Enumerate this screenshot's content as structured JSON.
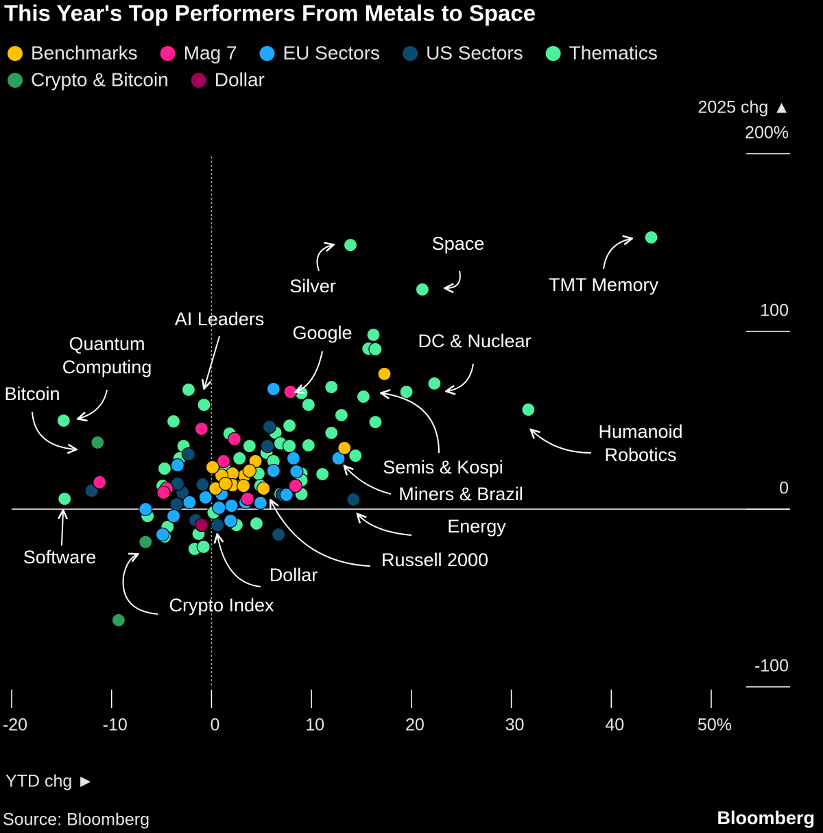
{
  "chart_data": {
    "type": "scatter",
    "title": "This Year's Top Performers From Metals to Space",
    "x_label": "YTD chg ►",
    "y_label": "2025 chg ▲",
    "source": "Source: Bloomberg",
    "brand": "Bloomberg",
    "xlim": [
      -20,
      50
    ],
    "ylim": [
      -100,
      200
    ],
    "xticks": [
      -20,
      -10,
      0,
      10,
      20,
      30,
      40,
      {
        "value": 50,
        "label": "50%"
      }
    ],
    "yticks": [
      -100,
      0,
      100,
      {
        "value": 200,
        "label": "200%"
      }
    ],
    "series": [
      {
        "name": "Thematics",
        "color": "#4df09c",
        "x": [
          13.9,
          21.1,
          44.0,
          16.2,
          15.7,
          16.4,
          22.3,
          19.5,
          15.2,
          12.0,
          9.0,
          9.7,
          31.7,
          13.0,
          16.4,
          12.0,
          14.4,
          11.1,
          9.0,
          9.7,
          -2.3,
          -0.75,
          -3.8,
          -14.8,
          -14.7,
          7.8,
          6.4,
          6.9,
          5.5,
          2.8,
          1.4,
          -2.8,
          -3.2,
          -4.7,
          -4.9,
          1.8,
          3.8,
          4.7,
          6.9,
          9.0,
          -6.4,
          -4.4,
          -4.7,
          -1.3,
          -1.7,
          -0.8,
          4.5,
          2.5,
          0.2,
          3.2,
          6.2,
          7.8,
          9.0,
          4.9
        ],
        "values": [
          148.6,
          123.6,
          152.9,
          98.1,
          90.3,
          90,
          70.7,
          66,
          63.3,
          68.7,
          65.3,
          58.7,
          56,
          52.9,
          49,
          42.9,
          30.1,
          19.7,
          20,
          35.9,
          67.2,
          58.7,
          49.4,
          49.8,
          5.8,
          47,
          43,
          37,
          31.7,
          28.6,
          22,
          35.5,
          28.6,
          22.8,
          13.1,
          42.5,
          35.5,
          20,
          8.5,
          8.5,
          -3.9,
          -10,
          -15.4,
          -13.9,
          -22.4,
          -21.2,
          -8.1,
          -8.9,
          -1.9,
          14.3,
          27,
          35.5,
          16.2,
          13.1
        ]
      },
      {
        "name": "US Sectors",
        "color": "#0b4b70",
        "x": [
          5.8,
          5.6,
          -2.3,
          -0.9,
          -2.9,
          -3.5,
          -1.6,
          0.6,
          6.7,
          14.2,
          -12.0,
          7.1,
          -3.4
        ],
        "values": [
          46.3,
          35.5,
          30.9,
          13.9,
          9.3,
          2.7,
          -6.2,
          -8.9,
          -14.3,
          5.4,
          10.4,
          8.1,
          14.3
        ]
      },
      {
        "name": "EU Sectors",
        "color": "#1eaaff",
        "x": [
          6.2,
          8.2,
          8.5,
          6.2,
          12.7,
          7.5,
          4.9,
          3.4,
          2.0,
          1.9,
          1.0,
          -2.2,
          -3.8,
          -4.9,
          -6.6,
          -3.4,
          0.75,
          -0.6
        ],
        "values": [
          67.6,
          28.6,
          21.2,
          21.6,
          28.6,
          8.1,
          3.5,
          3.9,
          1.9,
          -6.6,
          8.5,
          3.9,
          -3.9,
          -14.3,
          0,
          24.7,
          0.8,
          6.6
        ]
      },
      {
        "name": "Crypto & Bitcoin",
        "color": "#2e9e5b",
        "x": [
          -11.4,
          -6.6,
          -9.3
        ],
        "values": [
          37.5,
          -18.5,
          -62.5
        ]
      },
      {
        "name": "Dollar",
        "color": "#a3005c",
        "x": [
          -1.0
        ],
        "values": [
          -8.9
        ]
      },
      {
        "name": "Mag 7",
        "color": "#ff1f8e",
        "x": [
          7.9,
          -1.0,
          2.3,
          -11.2,
          -4.5,
          -4.8,
          1.2,
          3.6,
          8.4
        ],
        "values": [
          66,
          45.2,
          39.4,
          15.1,
          11.6,
          9.3,
          27,
          5.8,
          13.1
        ]
      },
      {
        "name": "Benchmarks",
        "color": "#ffc000",
        "x": [
          17.3,
          13.3,
          4.4,
          3.3,
          2.1,
          1.0,
          0.1,
          0.4,
          2.1,
          3.2,
          5.2,
          1.4,
          3.8
        ],
        "values": [
          76.1,
          34.4,
          27,
          18.9,
          20,
          18.9,
          23.6,
          11.6,
          13.5,
          13.1,
          11.6,
          14.3,
          21.6
        ]
      }
    ],
    "legend_order": [
      "Benchmarks",
      "Mag 7",
      "EU Sectors",
      "US Sectors",
      "Thematics",
      "Crypto & Bitcoin",
      "Dollar"
    ],
    "annotations": [
      [
        "Silver"
      ],
      [
        "Space"
      ],
      [
        "TMT Memory"
      ],
      [
        "AI Leaders"
      ],
      [
        "Google"
      ],
      [
        "DC & Nuclear"
      ],
      [
        "Quantum",
        "Computing"
      ],
      [
        "Bitcoin"
      ],
      [
        "Humanoid",
        "Robotics"
      ],
      [
        "Semis & Kospi"
      ],
      [
        "Miners & Brazil"
      ],
      [
        "Energy"
      ],
      [
        "Russell 2000"
      ],
      [
        "Software"
      ],
      [
        "Dollar"
      ],
      [
        "Crypto Index"
      ]
    ]
  }
}
